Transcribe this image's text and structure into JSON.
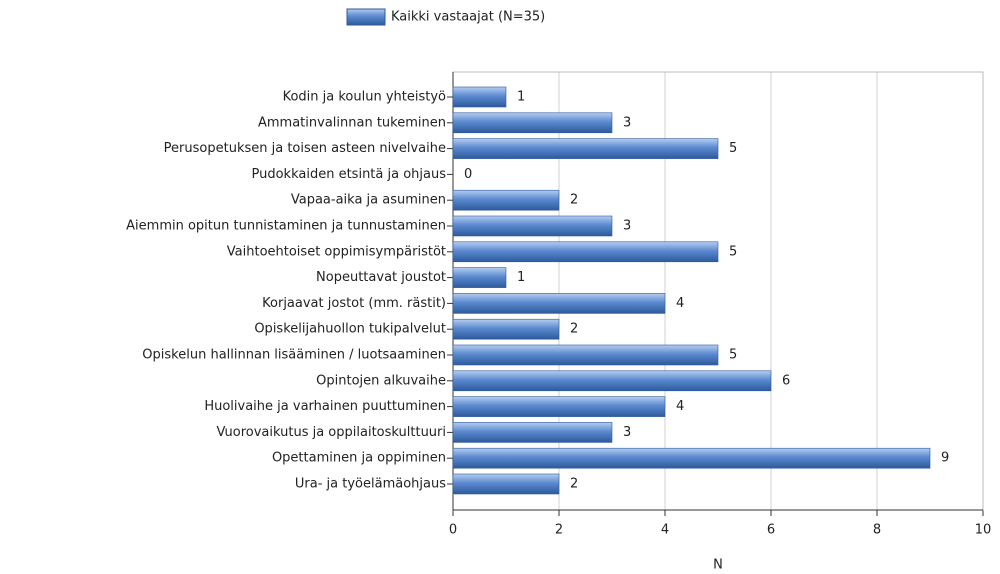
{
  "chart_data": {
    "type": "bar",
    "categories": [
      "Kodin ja koulun yhteistyö",
      "Ammatinvalinnan tukeminen",
      "Perusopetuksen ja toisen asteen nivelvaihe",
      "Pudokkaiden etsintä ja ohjaus",
      "Vapaa-aika ja asuminen",
      "Aiemmin opitun tunnistaminen ja tunnustaminen",
      "Vaihtoehtoiset oppimisympäristöt",
      "Nopeuttavat joustot",
      "Korjaavat jostot (mm. rästit)",
      "Opiskelijahuollon tukipalvelut",
      "Opiskelun hallinnan lisääminen / luotsaaminen",
      "Opintojen alkuvaihe",
      "Huolivaihe ja varhainen puuttuminen",
      "Vuorovaikutus ja oppilaitoskulttuuri",
      "Opettaminen ja oppiminen",
      "Ura- ja työelämäohjaus"
    ],
    "series": [
      {
        "name": "Kaikki vastaajat (N=35)",
        "color": "#4a7cc2",
        "values": [
          1,
          3,
          5,
          0,
          2,
          3,
          5,
          1,
          4,
          2,
          5,
          6,
          4,
          3,
          9,
          2
        ]
      }
    ],
    "xlabel": "N",
    "xlim": [
      0,
      10
    ],
    "xticks": [
      0,
      2,
      4,
      6,
      8,
      10
    ],
    "grid": true,
    "legend": "top"
  }
}
